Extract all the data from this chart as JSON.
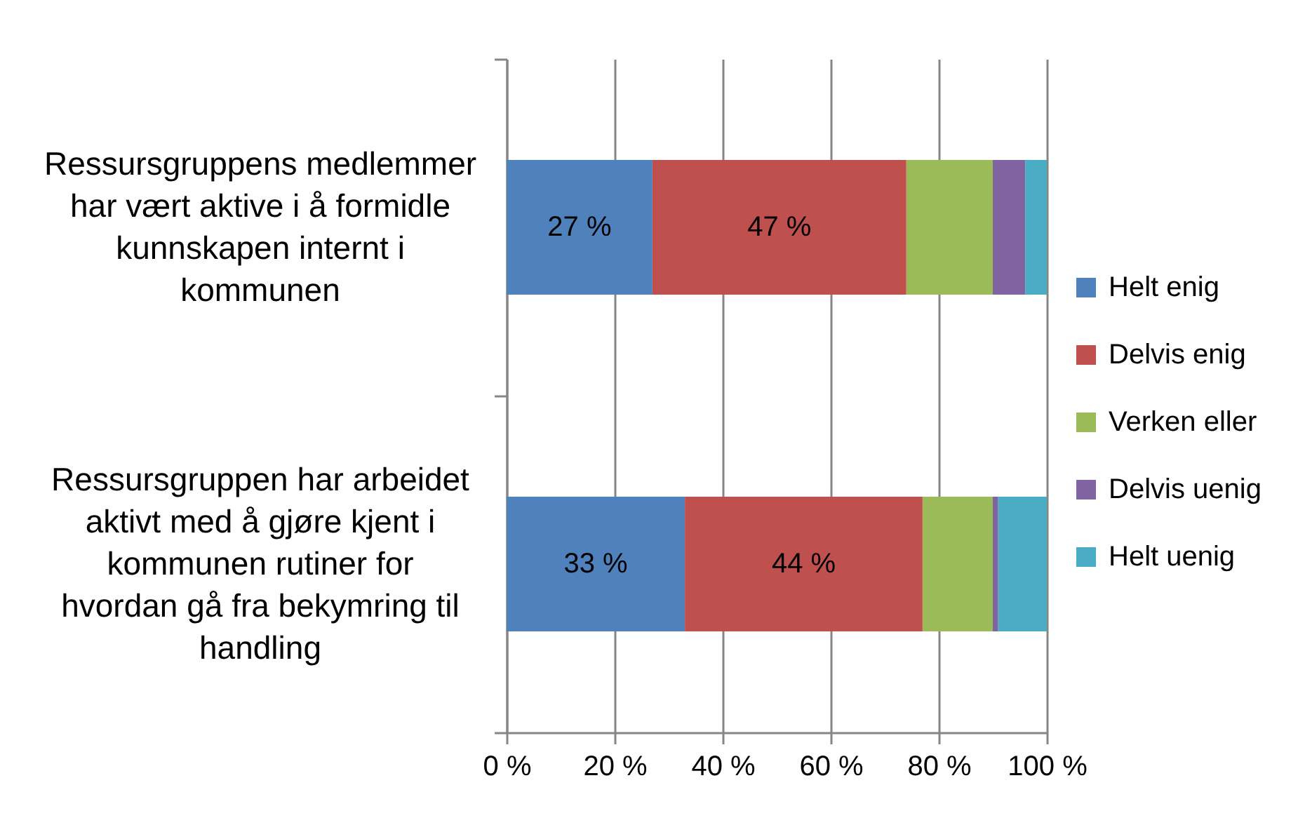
{
  "chart_data": {
    "type": "bar",
    "orientation": "horizontal",
    "stacked": true,
    "categories": [
      "Ressursgruppens medlemmer har vært aktive i å formidle kunnskapen internt i kommunen",
      "Ressursgruppen har arbeidet aktivt med å gjøre kjent i kommunen rutiner for hvordan gå fra bekymring til handling"
    ],
    "series": [
      {
        "name": "Helt enig",
        "color": "#4f81bd",
        "values": [
          27,
          33
        ],
        "value_labels": [
          "27 %",
          "33 %"
        ]
      },
      {
        "name": "Delvis enig",
        "color": "#c0504d",
        "values": [
          47,
          44
        ],
        "value_labels": [
          "47 %",
          "44 %"
        ]
      },
      {
        "name": "Verken eller",
        "color": "#9bbb59",
        "values": [
          16,
          13
        ]
      },
      {
        "name": "Delvis uenig",
        "color": "#8064a2",
        "values": [
          6,
          1
        ]
      },
      {
        "name": "Helt uenig",
        "color": "#4bacc6",
        "values": [
          4,
          9
        ]
      }
    ],
    "xlim": [
      0,
      100
    ],
    "xticks": [
      {
        "value": 0,
        "label": "0 %"
      },
      {
        "value": 20,
        "label": "20 %"
      },
      {
        "value": 40,
        "label": "40 %"
      },
      {
        "value": 60,
        "label": "60 %"
      },
      {
        "value": 80,
        "label": "80 %"
      },
      {
        "value": 100,
        "label": "100 %"
      }
    ],
    "grid": "x",
    "legend": "right"
  }
}
